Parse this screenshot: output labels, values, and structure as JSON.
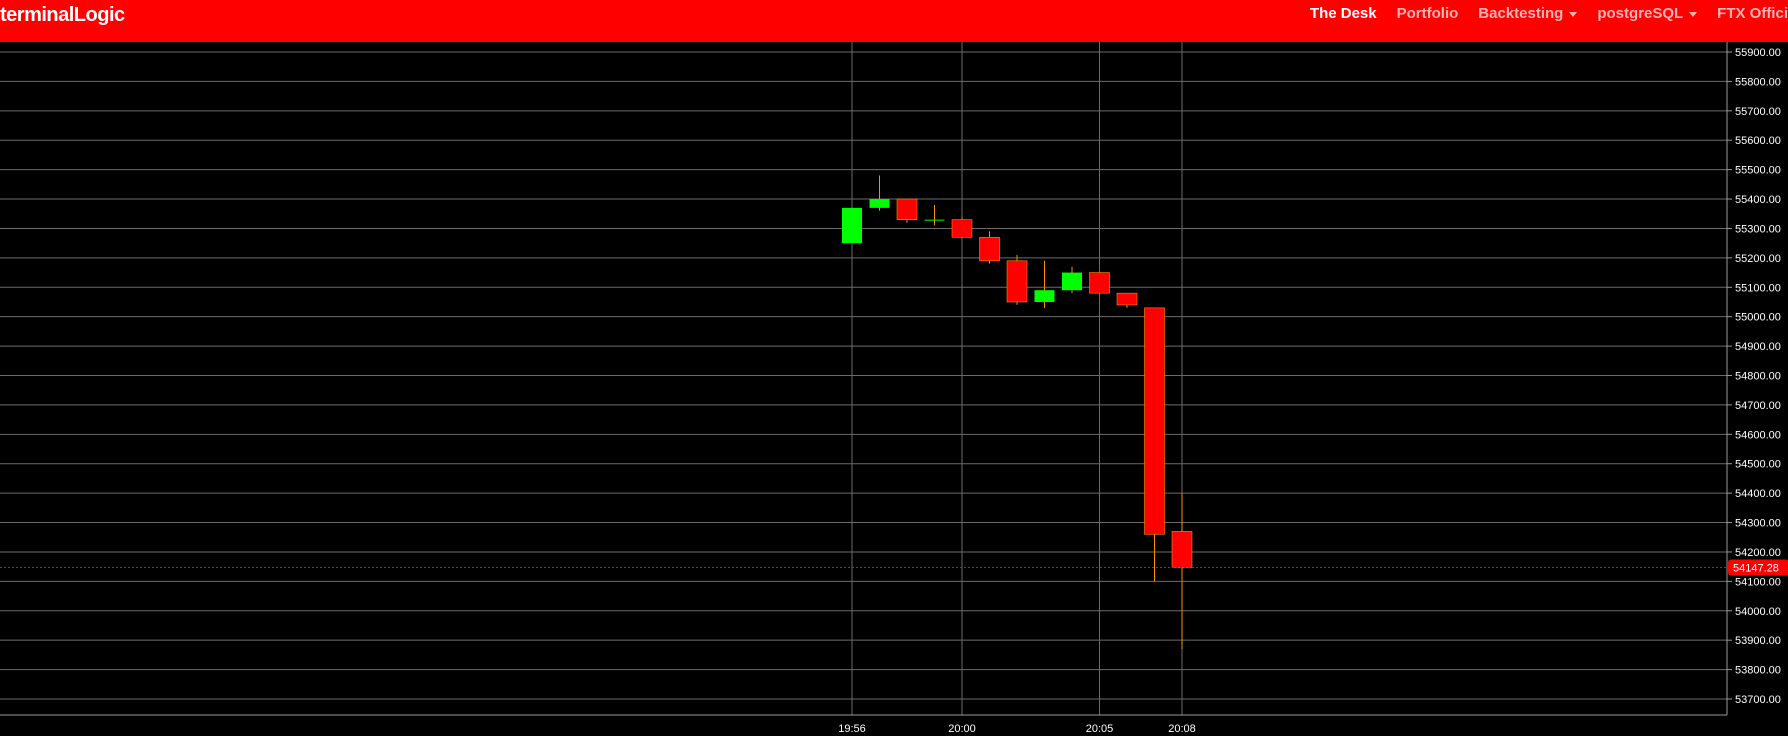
{
  "navbar": {
    "brand": "terminalLogic",
    "items": [
      {
        "label": "The Desk",
        "active": true
      },
      {
        "label": "Portfolio",
        "active": false
      },
      {
        "label": "Backtesting",
        "active": false,
        "dropdown": true
      },
      {
        "label": "postgreSQL",
        "active": false,
        "dropdown": true
      },
      {
        "label": "FTX Offici",
        "active": false
      }
    ],
    "color": "#ff0000"
  },
  "chart_data": {
    "type": "candlestick",
    "title": "",
    "xlabel": "",
    "ylabel": "",
    "ylim": [
      53650,
      55950
    ],
    "y_ticks": [
      "55900.00",
      "55800.00",
      "55700.00",
      "55600.00",
      "55500.00",
      "55400.00",
      "55300.00",
      "55200.00",
      "55100.00",
      "55000.00",
      "54900.00",
      "54800.00",
      "54700.00",
      "54600.00",
      "54500.00",
      "54400.00",
      "54300.00",
      "54200.00",
      "54100.00",
      "54000.00",
      "53900.00",
      "53800.00",
      "53700.00"
    ],
    "x_ticks": [
      "19:56",
      "20:00",
      "20:05",
      "20:08"
    ],
    "grid": true,
    "up_color": "#00ff00",
    "down_color": "#ff0000",
    "wick_color": "#ff8c00",
    "last_price": "54147.28",
    "last_price_color": "#ff0000",
    "candles": [
      {
        "time": "19:56",
        "open": 55250,
        "high": 55370,
        "low": 55250,
        "close": 55370
      },
      {
        "time": "19:57",
        "open": 55370,
        "high": 55480,
        "low": 55360,
        "close": 55400
      },
      {
        "time": "19:58",
        "open": 55400,
        "high": 55400,
        "low": 55320,
        "close": 55330
      },
      {
        "time": "19:59",
        "open": 55330,
        "high": 55380,
        "low": 55310,
        "close": 55330
      },
      {
        "time": "20:00",
        "open": 55330,
        "high": 55340,
        "low": 55270,
        "close": 55270
      },
      {
        "time": "20:01",
        "open": 55270,
        "high": 55290,
        "low": 55180,
        "close": 55190
      },
      {
        "time": "20:02",
        "open": 55190,
        "high": 55210,
        "low": 55040,
        "close": 55050
      },
      {
        "time": "20:03",
        "open": 55050,
        "high": 55190,
        "low": 55030,
        "close": 55090
      },
      {
        "time": "20:04",
        "open": 55090,
        "high": 55170,
        "low": 55080,
        "close": 55150
      },
      {
        "time": "20:05",
        "open": 55150,
        "high": 55150,
        "low": 55080,
        "close": 55080
      },
      {
        "time": "20:06",
        "open": 55080,
        "high": 55080,
        "low": 55030,
        "close": 55040
      },
      {
        "time": "20:07",
        "open": 55030,
        "high": 55030,
        "low": 54100,
        "close": 54260
      },
      {
        "time": "20:08",
        "open": 54270,
        "high": 54400,
        "low": 53870,
        "close": 54147.28
      }
    ]
  }
}
